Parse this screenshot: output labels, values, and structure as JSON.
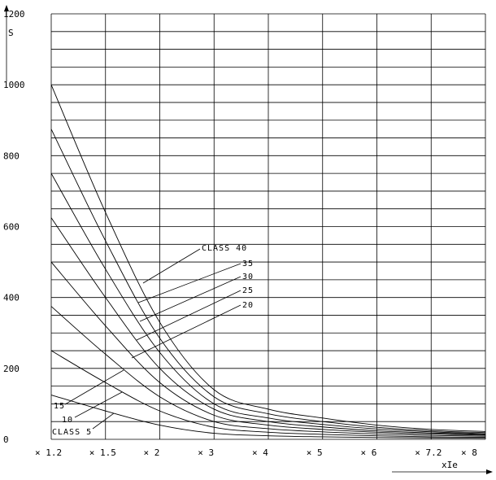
{
  "chart_data": {
    "type": "line",
    "ylabel": "S",
    "xlabel": "xIe",
    "ylim": [
      0,
      1200
    ],
    "y_ticks": [
      "0",
      "200",
      "400",
      "600",
      "800",
      "1000",
      "1200"
    ],
    "x_ticks": [
      "× 1.2",
      "× 1.5",
      "× 2",
      "× 3",
      "× 4",
      "× 5",
      "× 6",
      "× 7.2",
      "× 8"
    ],
    "grid": true,
    "series": [
      {
        "name": "CLASS 40",
        "x_index": [
          0,
          1,
          2,
          3,
          4,
          5,
          6,
          7,
          8
        ],
        "values": [
          1000,
          640,
          330,
          140,
          85,
          60,
          40,
          28,
          22
        ]
      },
      {
        "name": "35",
        "x_index": [
          0,
          1,
          2,
          3,
          4,
          5,
          6,
          7,
          8
        ],
        "values": [
          875,
          560,
          285,
          120,
          72,
          50,
          34,
          24,
          19
        ]
      },
      {
        "name": "30",
        "x_index": [
          0,
          1,
          2,
          3,
          4,
          5,
          6,
          7,
          8
        ],
        "values": [
          750,
          480,
          245,
          100,
          60,
          42,
          29,
          21,
          16
        ]
      },
      {
        "name": "25",
        "x_index": [
          0,
          1,
          2,
          3,
          4,
          5,
          6,
          7,
          8
        ],
        "values": [
          625,
          400,
          200,
          85,
          50,
          35,
          24,
          18,
          14
        ]
      },
      {
        "name": "20",
        "x_index": [
          0,
          1,
          2,
          3,
          4,
          5,
          6,
          7,
          8
        ],
        "values": [
          500,
          320,
          160,
          68,
          40,
          28,
          20,
          15,
          12
        ]
      },
      {
        "name": "15",
        "x_index": [
          0,
          1,
          2,
          3,
          4,
          5,
          6,
          7,
          8
        ],
        "values": [
          375,
          240,
          120,
          50,
          30,
          21,
          15,
          11,
          9
        ]
      },
      {
        "name": "10",
        "x_index": [
          0,
          1,
          2,
          3,
          4,
          5,
          6,
          7,
          8
        ],
        "values": [
          250,
          160,
          80,
          34,
          20,
          14,
          10,
          7,
          6
        ]
      },
      {
        "name": "CLASS 5",
        "x_index": [
          0,
          1,
          2,
          3,
          4,
          5,
          6,
          7,
          8
        ],
        "values": [
          125,
          80,
          40,
          17,
          10,
          7,
          5,
          4,
          3
        ]
      }
    ]
  }
}
